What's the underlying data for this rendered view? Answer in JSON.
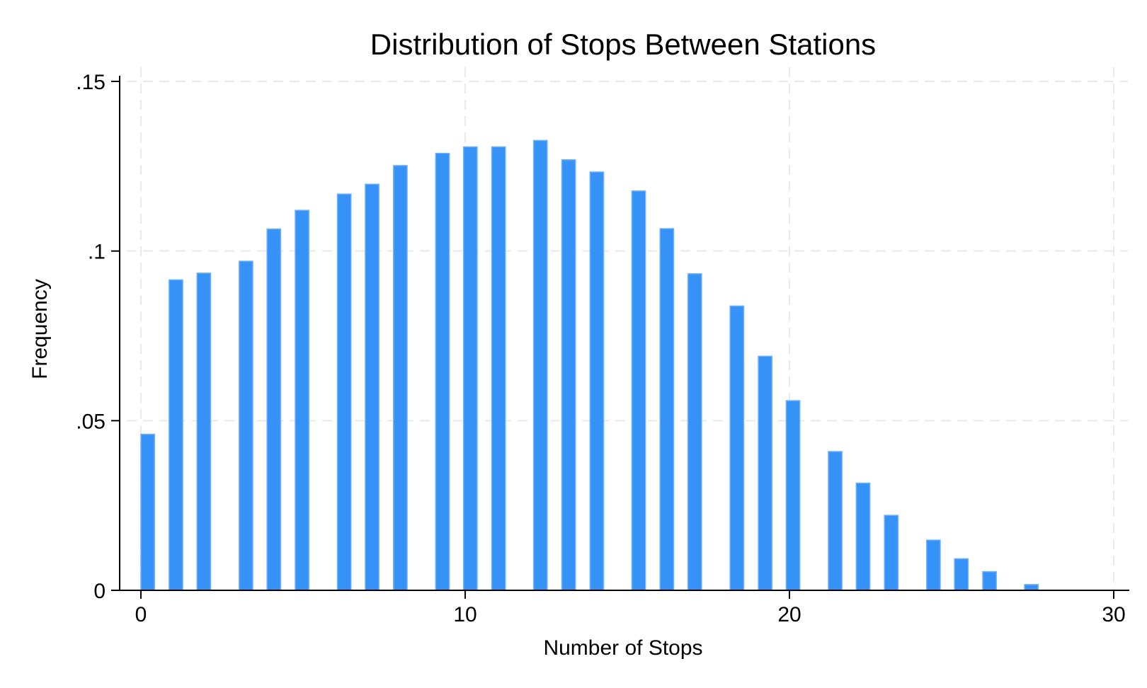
{
  "chart_data": {
    "type": "bar",
    "title": "Distribution of Stops Between Stations",
    "xlabel": "Number of Stops",
    "ylabel": "Frequency",
    "xlim": [
      0,
      30
    ],
    "ylim": [
      0,
      0.15
    ],
    "x_ticks": [
      {
        "value": 0,
        "label": "0"
      },
      {
        "value": 10,
        "label": "10"
      },
      {
        "value": 20,
        "label": "20"
      },
      {
        "value": 30,
        "label": "30"
      }
    ],
    "y_ticks": [
      {
        "value": 0,
        "label": "0"
      },
      {
        "value": 0.05,
        "label": ".05"
      },
      {
        "value": 0.1,
        "label": ".1"
      },
      {
        "value": 0.15,
        "label": ".15"
      }
    ],
    "bar_width": 0.42,
    "bars": [
      {
        "x": 0.21,
        "value": 0.046
      },
      {
        "x": 1.08,
        "value": 0.0915
      },
      {
        "x": 1.94,
        "value": 0.0935
      },
      {
        "x": 3.24,
        "value": 0.097
      },
      {
        "x": 4.1,
        "value": 0.1065
      },
      {
        "x": 4.97,
        "value": 0.112
      },
      {
        "x": 6.27,
        "value": 0.1168
      },
      {
        "x": 7.13,
        "value": 0.1197
      },
      {
        "x": 8.0,
        "value": 0.1252
      },
      {
        "x": 9.3,
        "value": 0.1288
      },
      {
        "x": 10.16,
        "value": 0.1307
      },
      {
        "x": 11.03,
        "value": 0.1307
      },
      {
        "x": 12.32,
        "value": 0.1326
      },
      {
        "x": 13.19,
        "value": 0.1269
      },
      {
        "x": 14.06,
        "value": 0.1233
      },
      {
        "x": 15.35,
        "value": 0.1177
      },
      {
        "x": 16.22,
        "value": 0.1066
      },
      {
        "x": 17.08,
        "value": 0.0933
      },
      {
        "x": 18.38,
        "value": 0.0838
      },
      {
        "x": 19.25,
        "value": 0.069
      },
      {
        "x": 20.11,
        "value": 0.0559
      },
      {
        "x": 21.41,
        "value": 0.0409
      },
      {
        "x": 22.27,
        "value": 0.0316
      },
      {
        "x": 23.14,
        "value": 0.0221
      },
      {
        "x": 24.44,
        "value": 0.0148
      },
      {
        "x": 25.3,
        "value": 0.0093
      },
      {
        "x": 26.17,
        "value": 0.0055
      },
      {
        "x": 27.46,
        "value": 0.0017
      }
    ],
    "grid": true,
    "bar_color": "#3792f8",
    "bar_edge_color": "#6eb0fb"
  }
}
